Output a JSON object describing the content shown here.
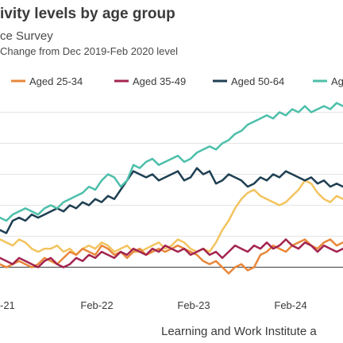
{
  "header": {
    "title": "ivity levels by age group",
    "subtitle": "ce Survey",
    "subtitle2": "Change from Dec 2019-Feb 2020 level"
  },
  "source": "Learning and Work Institute a",
  "chart_data": {
    "type": "line",
    "xlabel": "",
    "ylabel": "",
    "x_ticks": [
      "-21",
      "Feb-22",
      "Feb-23",
      "Feb-24"
    ],
    "ylim": [
      -0.6,
      5.6
    ],
    "zero_line": true,
    "grid": "horizontal",
    "legend_position": "top",
    "series": [
      {
        "name": "",
        "legend_label": "",
        "color": "#f2c45f",
        "values": [
          0.9,
          0.8,
          0.7,
          0.9,
          0.8,
          0.6,
          0.5,
          0.6,
          0.6,
          0.7,
          0.5,
          0.6,
          0.4,
          0.6,
          0.7,
          0.6,
          0.8,
          0.7,
          0.5,
          0.6,
          0.7,
          0.5,
          0.5,
          0.6,
          0.7,
          0.8,
          0.6,
          0.7,
          0.9,
          0.8,
          0.6,
          0.5,
          0.6,
          0.5,
          0.8,
          1.2,
          1.5,
          1.9,
          2.2,
          2.4,
          2.5,
          2.3,
          2.2,
          2.1,
          2.0,
          2.1,
          2.3,
          2.5,
          2.8,
          2.7,
          2.4,
          2.2,
          2.1,
          2.3,
          2.2
        ]
      },
      {
        "name": "Aged 25-34",
        "legend_label": "Aged 25-34",
        "color": "#e8873a",
        "values": [
          0.1,
          0.0,
          0.1,
          0.2,
          0.1,
          0.0,
          0.1,
          0.3,
          0.2,
          0.1,
          0.3,
          0.5,
          0.4,
          0.6,
          0.5,
          0.4,
          0.7,
          0.6,
          0.4,
          0.5,
          0.3,
          0.5,
          0.6,
          0.4,
          0.5,
          0.6,
          0.5,
          0.6,
          0.7,
          0.6,
          0.5,
          0.4,
          0.2,
          0.1,
          0.2,
          0.0,
          -0.2,
          0.0,
          0.1,
          -0.1,
          0.0,
          0.4,
          0.5,
          0.7,
          0.6,
          0.5,
          0.7,
          0.8,
          0.9,
          0.7,
          0.6,
          0.8,
          0.9,
          0.7,
          0.8
        ]
      },
      {
        "name": "Aged 35-49",
        "legend_label": "Aged 35-49",
        "color": "#a3244f",
        "values": [
          0.3,
          0.2,
          0.1,
          0.3,
          0.2,
          0.1,
          0.0,
          0.2,
          0.3,
          0.1,
          0.0,
          0.1,
          0.3,
          0.2,
          0.4,
          0.3,
          0.5,
          0.4,
          0.3,
          0.5,
          0.4,
          0.6,
          0.5,
          0.4,
          0.6,
          0.5,
          0.7,
          0.6,
          0.5,
          0.6,
          0.4,
          0.5,
          0.6,
          0.4,
          0.5,
          0.3,
          0.5,
          0.7,
          0.6,
          0.5,
          0.7,
          0.6,
          0.8,
          0.6,
          0.7,
          0.9,
          0.7,
          0.6,
          0.8,
          0.7,
          0.5,
          0.7,
          0.6,
          0.5,
          0.6
        ]
      },
      {
        "name": "Aged 50-64",
        "legend_label": "Aged 50-64",
        "color": "#1e3f52",
        "values": [
          1.2,
          1.1,
          1.5,
          1.6,
          1.5,
          1.7,
          1.6,
          1.7,
          1.8,
          1.9,
          1.8,
          2.0,
          1.9,
          2.1,
          2.0,
          2.2,
          2.1,
          2.3,
          2.2,
          2.5,
          2.8,
          3.1,
          3.0,
          2.9,
          3.0,
          2.8,
          2.9,
          3.0,
          3.1,
          2.8,
          2.9,
          3.2,
          3.0,
          3.1,
          2.7,
          2.8,
          3.0,
          2.9,
          2.8,
          2.6,
          2.7,
          2.9,
          2.8,
          3.0,
          2.9,
          3.1,
          3.0,
          2.9,
          2.8,
          2.9,
          2.7,
          2.8,
          2.6,
          2.7,
          2.6
        ]
      },
      {
        "name": "",
        "legend_label": "Ag",
        "color": "#4dbfaa",
        "values": [
          1.6,
          1.5,
          1.7,
          1.8,
          1.9,
          1.8,
          1.7,
          1.9,
          2.0,
          1.9,
          2.1,
          2.2,
          2.3,
          2.4,
          2.6,
          2.5,
          2.8,
          3.0,
          2.9,
          2.6,
          2.8,
          3.3,
          3.2,
          3.4,
          3.5,
          3.3,
          3.4,
          3.5,
          3.6,
          3.4,
          3.5,
          3.7,
          3.8,
          3.9,
          3.8,
          4.0,
          4.1,
          4.3,
          4.4,
          4.6,
          4.7,
          4.8,
          4.9,
          4.8,
          5.0,
          4.9,
          5.1,
          5.0,
          5.2,
          5.0,
          5.1,
          5.2,
          5.1,
          5.3,
          5.2
        ]
      }
    ]
  }
}
